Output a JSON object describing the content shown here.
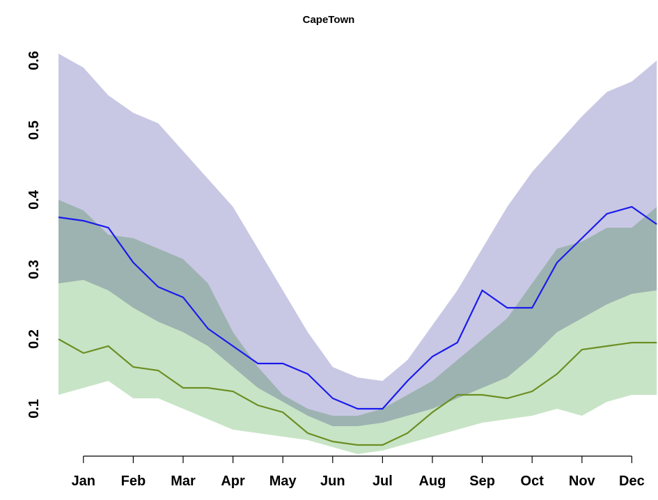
{
  "chart_data": {
    "type": "band-line",
    "title": "CapeTown",
    "categories": [
      null,
      "Jan",
      null,
      "Feb",
      null,
      "Mar",
      null,
      "Apr",
      null,
      "May",
      null,
      "Jun",
      null,
      "Jul",
      null,
      "Aug",
      null,
      "Sep",
      null,
      "Oct",
      null,
      "Nov",
      null,
      "Dec",
      null
    ],
    "ylim": [
      0.1,
      0.6
    ],
    "yticks": [
      0.1,
      0.2,
      0.3,
      0.4,
      0.5,
      0.6
    ],
    "bands": [
      {
        "color": "#c8c8e4",
        "upper": [
          0.61,
          0.59,
          0.55,
          0.525,
          0.51,
          0.47,
          0.43,
          0.39,
          0.33,
          0.27,
          0.21,
          0.16,
          0.145,
          0.14,
          0.17,
          0.22,
          0.27,
          0.33,
          0.39,
          0.44,
          0.48,
          0.52,
          0.555,
          0.57,
          0.6
        ],
        "lower": [
          0.28,
          0.285,
          0.27,
          0.245,
          0.225,
          0.21,
          0.19,
          0.16,
          0.13,
          0.11,
          0.09,
          0.075,
          0.075,
          0.08,
          0.09,
          0.1,
          0.115,
          0.13,
          0.145,
          0.175,
          0.21,
          0.23,
          0.25,
          0.265,
          0.27
        ]
      },
      {
        "color": "#c8e4c6",
        "upper": [
          0.4,
          0.385,
          0.35,
          0.345,
          0.33,
          0.315,
          0.28,
          0.21,
          0.16,
          0.12,
          0.1,
          0.09,
          0.09,
          0.1,
          0.12,
          0.14,
          0.17,
          0.2,
          0.23,
          0.28,
          0.33,
          0.34,
          0.36,
          0.36,
          0.39
        ],
        "lower": [
          0.12,
          0.13,
          0.14,
          0.115,
          0.115,
          0.1,
          0.085,
          0.07,
          0.065,
          0.06,
          0.055,
          0.045,
          0.035,
          0.04,
          0.05,
          0.06,
          0.07,
          0.08,
          0.085,
          0.09,
          0.1,
          0.09,
          0.11,
          0.12,
          0.12
        ]
      }
    ],
    "series": [
      {
        "color": "#1a1aee",
        "values": [
          0.375,
          0.37,
          0.36,
          0.31,
          0.275,
          0.26,
          0.215,
          0.19,
          0.165,
          0.165,
          0.15,
          0.115,
          0.1,
          0.1,
          0.14,
          0.175,
          0.195,
          0.27,
          0.245,
          0.245,
          0.31,
          0.345,
          0.38,
          0.39,
          0.365
        ]
      },
      {
        "color": "#6b8e23",
        "values": [
          0.2,
          0.18,
          0.19,
          0.16,
          0.155,
          0.13,
          0.13,
          0.125,
          0.105,
          0.095,
          0.065,
          0.053,
          0.048,
          0.048,
          0.065,
          0.095,
          0.12,
          0.12,
          0.115,
          0.125,
          0.15,
          0.185,
          0.19,
          0.195,
          0.195
        ]
      }
    ]
  }
}
